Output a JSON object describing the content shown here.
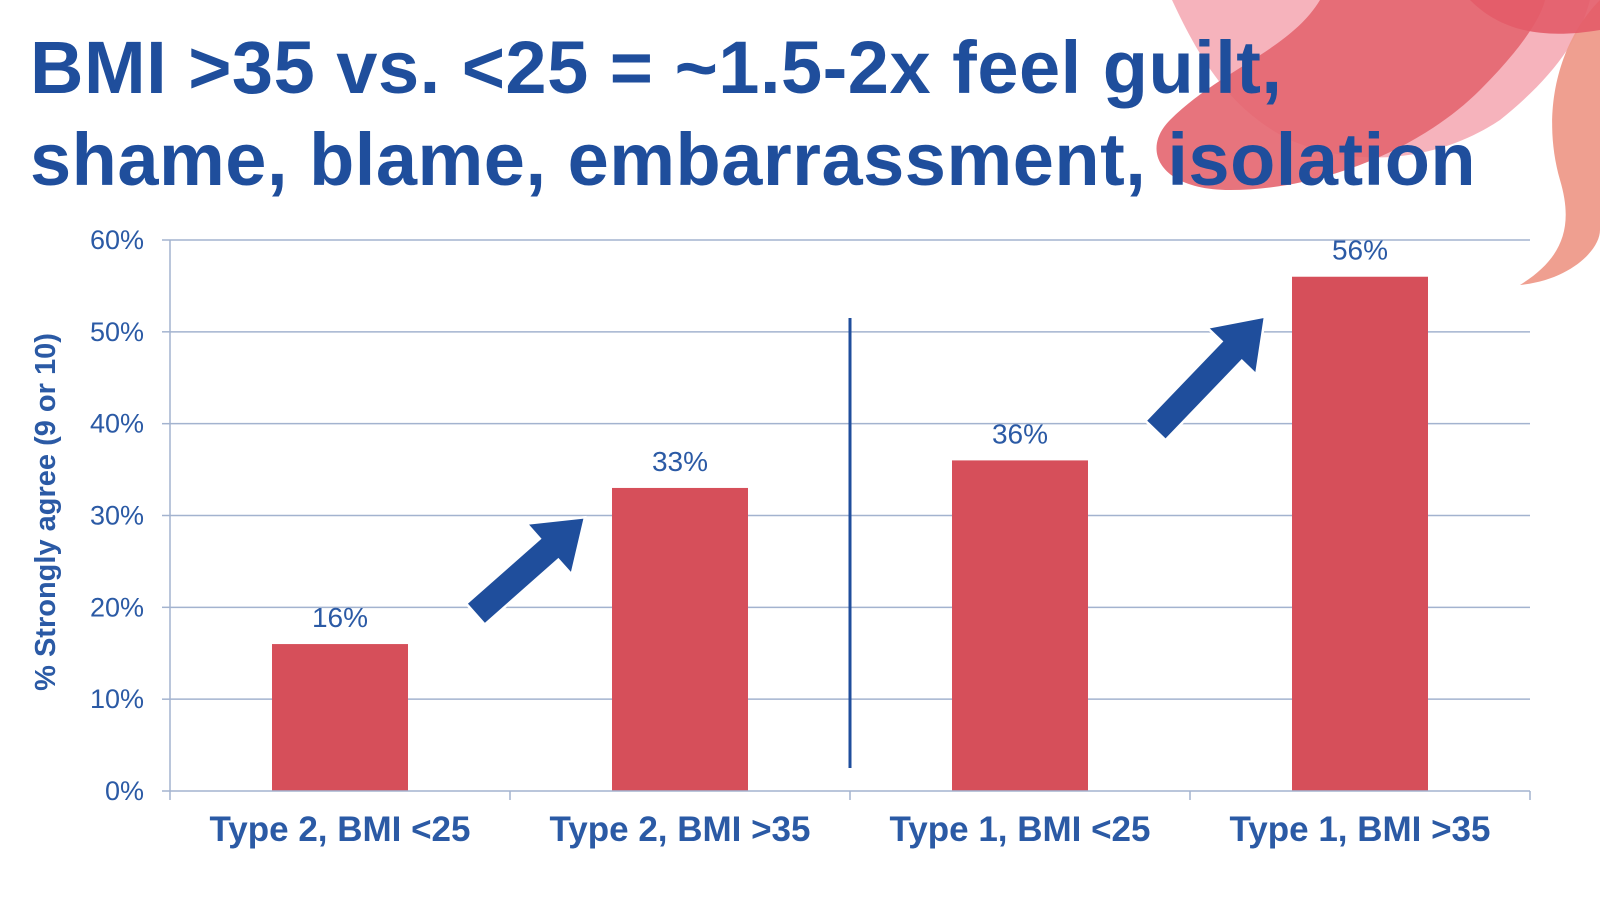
{
  "slide": {
    "title_line1": "BMI >35 vs. <25 = ~1.5-2x feel guilt,",
    "title_line2": "shame, blame, embarrassment, isolation"
  },
  "colors": {
    "title": "#1f4e9c",
    "axis_text": "#2b5aa5",
    "bar": "#d64f5a",
    "gridline": "#a3b3cf",
    "arrow": "#1f4e9c",
    "divider": "#1f4e9c",
    "decor_pink": "#e6707a",
    "decor_coral": "#ee9a8a"
  },
  "chart_data": {
    "type": "bar",
    "categories": [
      "Type 2, BMI <25",
      "Type 2, BMI >35",
      "Type 1, BMI <25",
      "Type 1, BMI >35"
    ],
    "values": [
      16,
      33,
      36,
      56
    ],
    "data_labels": [
      "16%",
      "33%",
      "36%",
      "56%"
    ],
    "ylabel": "% Strongly agree (9 or 10)",
    "ylim": [
      0,
      60
    ],
    "yticks": [
      0,
      10,
      20,
      30,
      40,
      50,
      60
    ],
    "ytick_labels": [
      "0%",
      "10%",
      "20%",
      "30%",
      "40%",
      "50%",
      "60%"
    ],
    "grid": true,
    "legend": "none",
    "annotations": [
      {
        "type": "arrow",
        "from_category": "Type 2, BMI <25",
        "to_category": "Type 2, BMI >35"
      },
      {
        "type": "arrow",
        "from_category": "Type 1, BMI <25",
        "to_category": "Type 1, BMI >35"
      },
      {
        "type": "divider",
        "between": [
          "Type 2, BMI >35",
          "Type 1, BMI <25"
        ]
      }
    ]
  }
}
